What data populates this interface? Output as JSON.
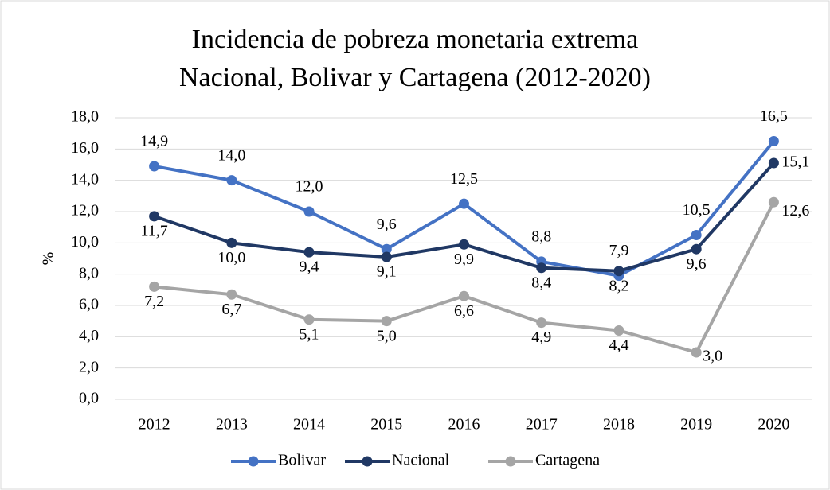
{
  "chart_data": {
    "type": "line",
    "title": [
      "Incidencia de pobreza monetaria extrema",
      "Nacional, Bolivar y Cartagena (2012-2020)"
    ],
    "y_label": "%",
    "categories": [
      "2012",
      "2013",
      "2014",
      "2015",
      "2016",
      "2017",
      "2018",
      "2019",
      "2020"
    ],
    "series": [
      {
        "name": "Bolivar",
        "color": "#4472c4",
        "values": [
          14.9,
          14.0,
          12.0,
          9.6,
          12.5,
          8.8,
          7.9,
          10.5,
          16.5
        ],
        "value_labels": [
          "14,9",
          "14,0",
          "12,0",
          "9,6",
          "12,5",
          "8,8",
          "7,9",
          "10,5",
          "16,5"
        ]
      },
      {
        "name": "Nacional",
        "color": "#203864",
        "values": [
          11.7,
          10.0,
          9.4,
          9.1,
          9.9,
          8.4,
          8.2,
          9.6,
          15.1
        ],
        "value_labels": [
          "11,7",
          "10,0",
          "9,4",
          "9,1",
          "9,9",
          "8,4",
          "8,2",
          "9,6",
          "15,1"
        ]
      },
      {
        "name": "Cartagena",
        "color": "#a5a5a5",
        "values": [
          7.2,
          6.7,
          5.1,
          5.0,
          6.6,
          4.9,
          4.4,
          3.0,
          12.6
        ],
        "value_labels": [
          "7,2",
          "6,7",
          "5,1",
          "5,0",
          "6,6",
          "4,9",
          "4,4",
          "3,0",
          "12,6"
        ]
      }
    ],
    "ylim": [
      0,
      18
    ],
    "yticks": [
      {
        "value": 0,
        "label": "0,0"
      },
      {
        "value": 2,
        "label": "2,0"
      },
      {
        "value": 4,
        "label": "4,0"
      },
      {
        "value": 6,
        "label": "6,0"
      },
      {
        "value": 8,
        "label": "8,0"
      },
      {
        "value": 10,
        "label": "10,0"
      },
      {
        "value": 12,
        "label": "12,0"
      },
      {
        "value": 14,
        "label": "14,0"
      },
      {
        "value": 16,
        "label": "16,0"
      },
      {
        "value": 18,
        "label": "18,0"
      }
    ],
    "grid": true,
    "legend": "bottom"
  }
}
